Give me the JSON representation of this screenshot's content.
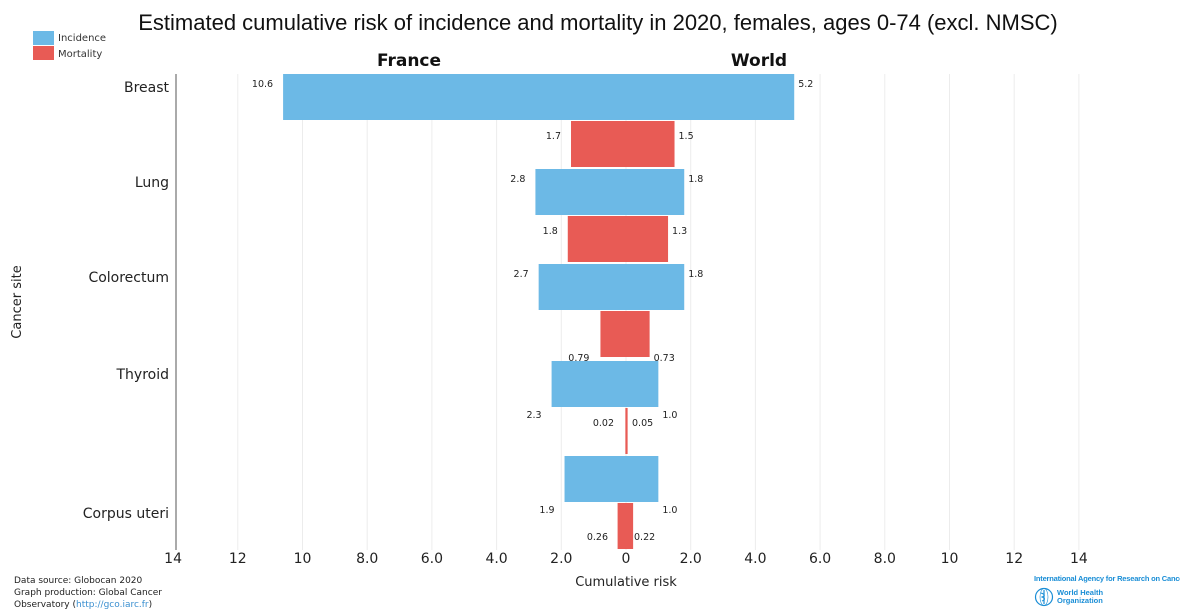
{
  "chart_data": {
    "type": "bar",
    "orientation": "horizontal",
    "layout": "back-to-back",
    "title": "Estimated cumulative risk of incidence and mortality in 2020, females, ages 0-74 (excl. NMSC)",
    "panels": [
      "France",
      "World"
    ],
    "xlabel": "Cumulative risk",
    "ylabel": "Cancer site",
    "x_ticks": [
      "14",
      "12",
      "10",
      "8.0",
      "6.0",
      "4.0",
      "2.0",
      "0",
      "2.0",
      "4.0",
      "6.0",
      "8.0",
      "10",
      "12",
      "14"
    ],
    "xlim": [
      -14,
      14
    ],
    "grid": true,
    "legend_position": "top-left",
    "categories": [
      "Breast",
      "Lung",
      "Colorectum",
      "Thyroid",
      "Corpus uteri"
    ],
    "series": [
      {
        "name": "Incidence",
        "color": "#6cb9e6",
        "france": [
          10.6,
          2.8,
          2.7,
          2.3,
          1.9
        ],
        "world": [
          5.2,
          1.8,
          1.8,
          1.0,
          1.0
        ],
        "france_labels": [
          "10.6",
          "2.8",
          "2.7",
          "2.3",
          "1.9"
        ],
        "world_labels": [
          "5.2",
          "1.8",
          "1.8",
          "1.0",
          "1.0"
        ]
      },
      {
        "name": "Mortality",
        "color": "#e85b55",
        "france": [
          1.7,
          1.8,
          0.79,
          0.02,
          0.26
        ],
        "world": [
          1.5,
          1.3,
          0.73,
          0.05,
          0.22
        ],
        "france_labels": [
          "1.7",
          "1.8",
          "0.79",
          "0.02",
          "0.26"
        ],
        "world_labels": [
          "1.5",
          "1.3",
          "0.73",
          "0.05",
          "0.22"
        ]
      }
    ]
  },
  "footer": {
    "line1": "Data source: Globocan 2020",
    "line2": "Graph production: Global Cancer",
    "line3_prefix": "Observatory (",
    "line3_link": "http://gco.iarc.fr",
    "line3_suffix": ")"
  },
  "logos": {
    "iarc": "International Agency for Research on Cancer",
    "who_line1": "World Health",
    "who_line2": "Organization"
  }
}
